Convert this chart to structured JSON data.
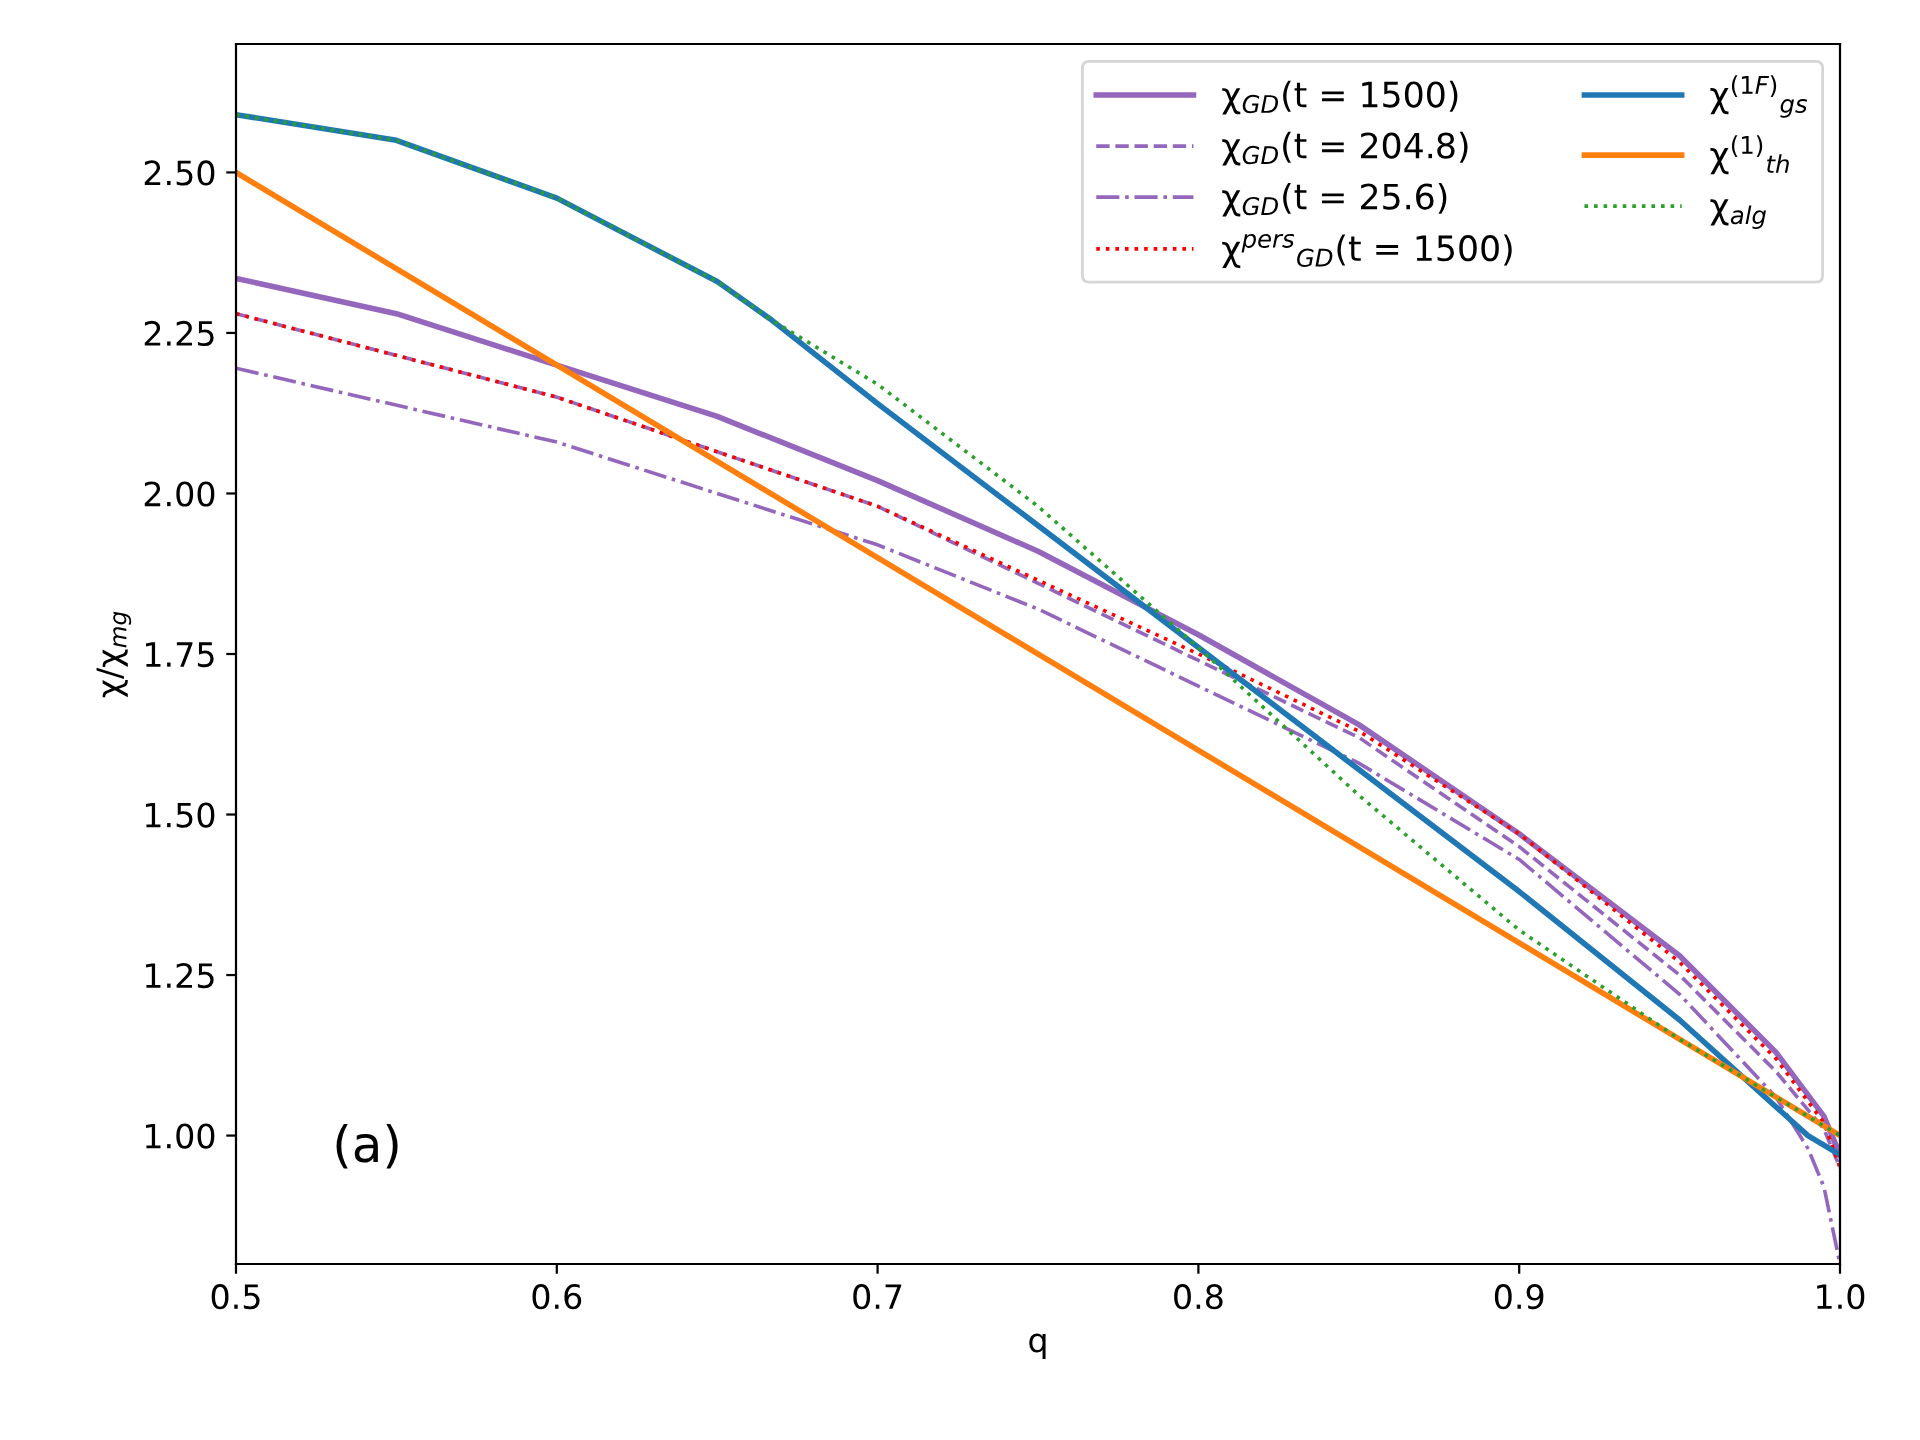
{
  "chart_data": {
    "type": "line",
    "xlabel": "q",
    "ylabel": "χ/χ$_{mg}$",
    "xlim": [
      0.5,
      1.0
    ],
    "ylim": [
      0.8,
      2.7
    ],
    "xticks": [
      0.5,
      0.6,
      0.7,
      0.8,
      0.9,
      {
        "value": 1.0,
        "label": "1.0"
      }
    ],
    "yticks": [
      {
        "value": 1.0,
        "label": "1.00"
      },
      1.25,
      {
        "value": 1.5,
        "label": "1.50"
      },
      1.75,
      {
        "value": 2.0,
        "label": "2.00"
      },
      2.25,
      {
        "value": 2.5,
        "label": "2.50"
      }
    ],
    "grid": false,
    "legend": "top right",
    "annotations": [
      "(a)"
    ],
    "series": [
      {
        "name": "χ$_{GD}$(t = 1500)",
        "color": "#9467bd",
        "line_style": "solid",
        "x": [
          0.5,
          0.55,
          0.6,
          0.65,
          0.7,
          0.75,
          0.8,
          0.85,
          0.9,
          0.95,
          0.98,
          0.995,
          1.0
        ],
        "values": [
          2.335,
          2.28,
          2.2,
          2.12,
          2.02,
          1.91,
          1.78,
          1.64,
          1.47,
          1.28,
          1.13,
          1.03,
          0.97
        ]
      },
      {
        "name": "χ$_{GD}$(t = 204.8)",
        "color": "#9467bd",
        "line_style": "dashed",
        "x": [
          0.5,
          0.6,
          0.7,
          0.8,
          0.85,
          0.9,
          0.95,
          0.98,
          0.995,
          1.0
        ],
        "values": [
          2.28,
          2.15,
          1.98,
          1.74,
          1.62,
          1.45,
          1.25,
          1.1,
          1.01,
          0.95
        ]
      },
      {
        "name": "χ$_{GD}$(t = 25.6)",
        "color": "#9467bd",
        "line_style": "dashdot",
        "x": [
          0.5,
          0.6,
          0.7,
          0.75,
          0.8,
          0.85,
          0.9,
          0.95,
          0.98,
          0.99,
          0.995,
          1.0
        ],
        "values": [
          2.195,
          2.08,
          1.92,
          1.82,
          1.7,
          1.58,
          1.43,
          1.22,
          1.06,
          0.98,
          0.92,
          0.8
        ]
      },
      {
        "name": "χ$^{pers}$$_{GD}$(t = 1500)",
        "color": "#ff0000",
        "line_style": "dotted",
        "x": [
          0.5,
          0.6,
          0.7,
          0.8,
          0.85,
          0.9,
          0.95,
          0.98,
          0.995,
          1.0
        ],
        "values": [
          2.28,
          2.15,
          1.98,
          1.75,
          1.63,
          1.47,
          1.27,
          1.12,
          1.02,
          0.95
        ]
      },
      {
        "name": "χ$^{(1F)}$$_{gs}$",
        "color": "#1f77b4",
        "line_style": "solid",
        "x": [
          0.5,
          0.55,
          0.6,
          0.65,
          0.667,
          0.7,
          0.75,
          0.8,
          0.85,
          0.9,
          0.95,
          0.99,
          1.0
        ],
        "values": [
          2.59,
          2.55,
          2.46,
          2.33,
          2.27,
          2.14,
          1.95,
          1.76,
          1.57,
          1.38,
          1.18,
          1.0,
          0.97
        ]
      },
      {
        "name": "χ$^{(1)}$$_{th}$",
        "color": "#ff7f0e",
        "line_style": "solid",
        "x": [
          0.5,
          1.0
        ],
        "values": [
          2.5,
          1.0
        ]
      },
      {
        "name": "χ$_{alg}$",
        "color": "#2ca02c",
        "line_style": "dotted",
        "x": [
          0.5,
          0.55,
          0.6,
          0.65,
          0.667,
          0.7,
          0.75,
          0.8,
          0.85,
          0.9,
          0.95,
          0.98,
          1.0
        ],
        "values": [
          2.59,
          2.55,
          2.46,
          2.33,
          2.27,
          2.17,
          1.98,
          1.76,
          1.53,
          1.32,
          1.15,
          1.06,
          1.0
        ]
      }
    ]
  }
}
